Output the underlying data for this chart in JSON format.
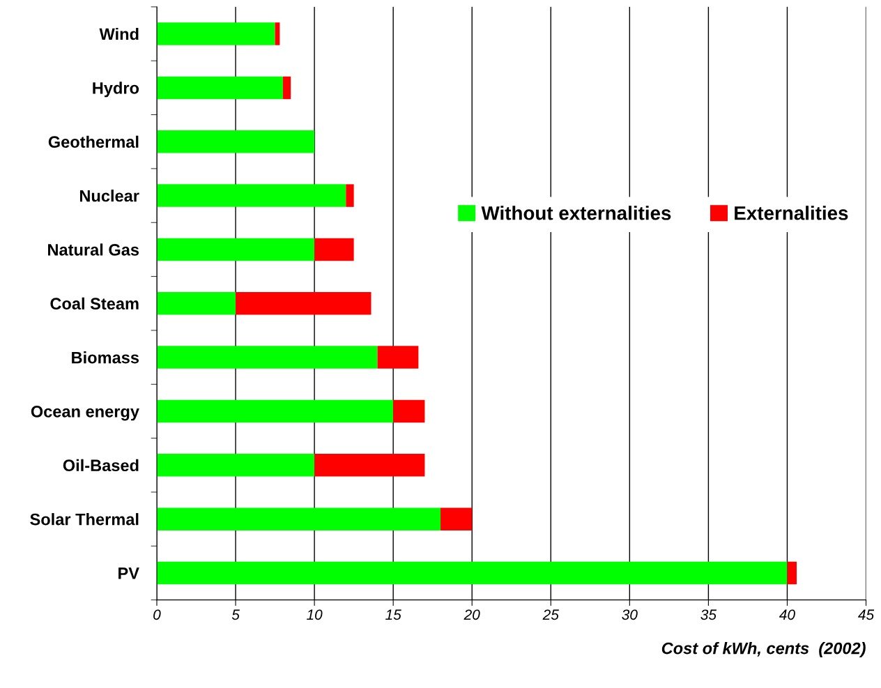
{
  "chart_data": {
    "type": "bar",
    "orientation": "horizontal",
    "stacked": true,
    "categories": [
      "Wind",
      "Hydro",
      "Geothermal",
      "Nuclear",
      "Natural Gas",
      "Coal Steam",
      "Biomass",
      "Ocean energy",
      "Oil-Based",
      "Solar Thermal",
      "PV"
    ],
    "series": [
      {
        "name": "Without externalities",
        "color": "#00ff00",
        "values": [
          7.5,
          8,
          10,
          12,
          10,
          5,
          14,
          15,
          10,
          18,
          40
        ]
      },
      {
        "name": "Externalities",
        "color": "#ff0000",
        "values": [
          0.3,
          0.5,
          0,
          0.5,
          2.5,
          8.6,
          2.6,
          2,
          7,
          2,
          0.6
        ]
      }
    ],
    "xlabel": "Cost of kWh, cents  (2002)",
    "xlim": [
      0,
      45
    ],
    "xticks": [
      0,
      5,
      10,
      15,
      20,
      25,
      30,
      35,
      40,
      45
    ],
    "grid": "x",
    "legend": "right"
  }
}
